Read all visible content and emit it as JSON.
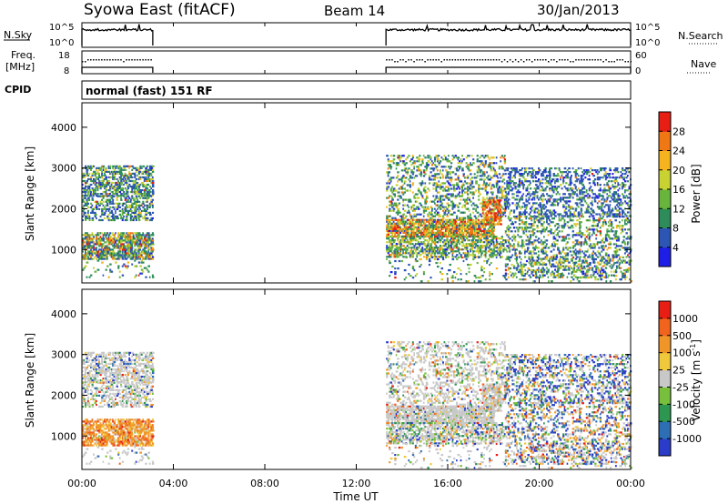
{
  "header": {
    "station": "Syowa East (fitACF)",
    "beam": "Beam 14",
    "date": "30/Jan/2013"
  },
  "labels": {
    "nsky": "N.Sky",
    "nsearch": "N.Search",
    "freq_line1": "Freq.",
    "freq_line2": "[MHz]",
    "nave": "Nave",
    "cpid": "CPID",
    "cpid_value": "normal (fast) 151 RF"
  },
  "noise_axis": {
    "left_ticks": [
      "10^5",
      "10^0"
    ],
    "right_ticks": [
      "10^5",
      "10^0"
    ]
  },
  "freq_axis": {
    "left_ticks": [
      18,
      8
    ],
    "right_ticks": [
      60,
      0
    ]
  },
  "chart_data": [
    {
      "type": "heatmap",
      "title": "",
      "xlabel": "Time UT",
      "ylabel": "Slant Range [km]",
      "x_ticks": [
        "00:00",
        "04:00",
        "08:00",
        "12:00",
        "16:00",
        "20:00",
        "00:00"
      ],
      "xlim_hours": [
        0,
        24
      ],
      "y_ticks": [
        1000,
        2000,
        3000,
        4000
      ],
      "ylim": [
        180,
        4600
      ],
      "colorbar": {
        "label": "Power [dB]",
        "ticks": [
          4,
          8,
          12,
          16,
          20,
          24,
          28
        ],
        "colors": [
          "#1e1ee6",
          "#2d55b4",
          "#2d8c5a",
          "#69b43c",
          "#c8d232",
          "#f5b41e",
          "#f07814",
          "#e61e14"
        ]
      },
      "data_coverage_hours": [
        [
          0.0,
          3.1
        ],
        [
          13.3,
          24.0
        ]
      ]
    },
    {
      "type": "heatmap",
      "title": "",
      "xlabel": "Time UT",
      "ylabel": "Slant Range [km]",
      "x_ticks": [
        "00:00",
        "04:00",
        "08:00",
        "12:00",
        "16:00",
        "20:00",
        "00:00"
      ],
      "xlim_hours": [
        0,
        24
      ],
      "y_ticks": [
        1000,
        2000,
        3000,
        4000
      ],
      "ylim": [
        180,
        4600
      ],
      "colorbar": {
        "label": "Velocity [m s^-1]",
        "ticks": [
          "1000",
          "500",
          "100",
          "25",
          "-25",
          "-100",
          "-500",
          "-1000"
        ],
        "colors": [
          "#2a3cc8",
          "#2d6eb4",
          "#2d9650",
          "#78c03c",
          "#c8c8c8",
          "#f0c83c",
          "#f09628",
          "#f0641e",
          "#e61e14"
        ]
      },
      "data_coverage_hours": [
        [
          0.0,
          3.1
        ],
        [
          13.3,
          24.0
        ]
      ]
    }
  ]
}
